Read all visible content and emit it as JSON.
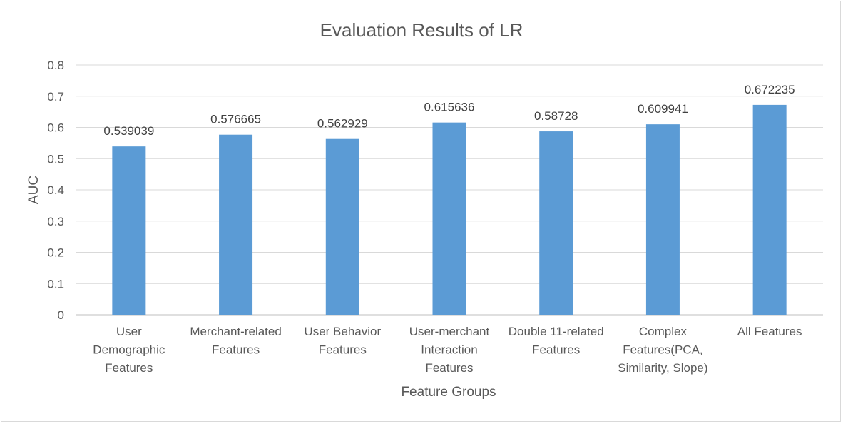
{
  "chart_data": {
    "type": "bar",
    "title": "Evaluation Results of LR",
    "xlabel": "Feature Groups",
    "ylabel": "AUC",
    "ylim": [
      0,
      0.8
    ],
    "yticks": [
      "0",
      "0.1",
      "0.2",
      "0.3",
      "0.4",
      "0.5",
      "0.6",
      "0.7",
      "0.8"
    ],
    "grid": true,
    "categories": [
      [
        "User",
        "Demographic",
        "Features"
      ],
      [
        "Merchant-related",
        "Features"
      ],
      [
        "User Behavior",
        "Features"
      ],
      [
        "User-merchant",
        "Interaction",
        "Features"
      ],
      [
        "Double 11-related",
        "Features"
      ],
      [
        "Complex",
        "Features(PCA,",
        "Similarity, Slope)"
      ],
      [
        "All Features"
      ]
    ],
    "values": [
      0.539039,
      0.576665,
      0.562929,
      0.615636,
      0.58728,
      0.609941,
      0.672235
    ],
    "data_labels": [
      "0.539039",
      "0.576665",
      "0.562929",
      "0.615636",
      "0.58728",
      "0.609941",
      "0.672235"
    ],
    "colors": {
      "bar": "#5b9bd5",
      "grid": "#d9d9d9",
      "text": "#595959"
    }
  }
}
